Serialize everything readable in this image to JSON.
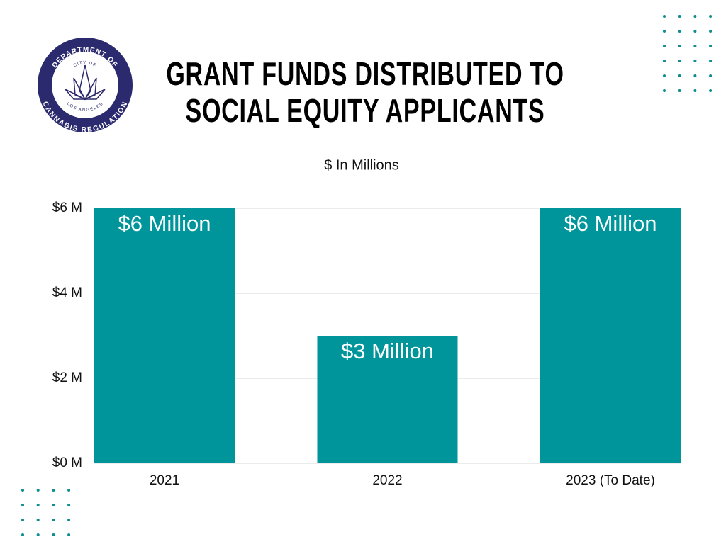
{
  "logo": {
    "top_text": "DEPARTMENT OF",
    "city": "CITY OF",
    "place": "LOS ANGELES",
    "bottom_text": "CANNABIS REGULATION"
  },
  "chart_data": {
    "type": "bar",
    "title": "GRANT FUNDS DISTRIBUTED TO SOCIAL EQUITY APPLICANTS",
    "subtitle": "$ In Millions",
    "categories": [
      "2021",
      "2022",
      "2023 (To Date)"
    ],
    "values": [
      6,
      3,
      6
    ],
    "value_labels": [
      "$6 Million",
      "$3 Million",
      "$6 Million"
    ],
    "color": "#00959a",
    "ylim": [
      0,
      6
    ],
    "yticks": [
      {
        "value": 0,
        "label": "$0 M"
      },
      {
        "value": 2,
        "label": "$2 M"
      },
      {
        "value": 4,
        "label": "$4 M"
      },
      {
        "value": 6,
        "label": "$6 M"
      }
    ],
    "grid": true
  }
}
